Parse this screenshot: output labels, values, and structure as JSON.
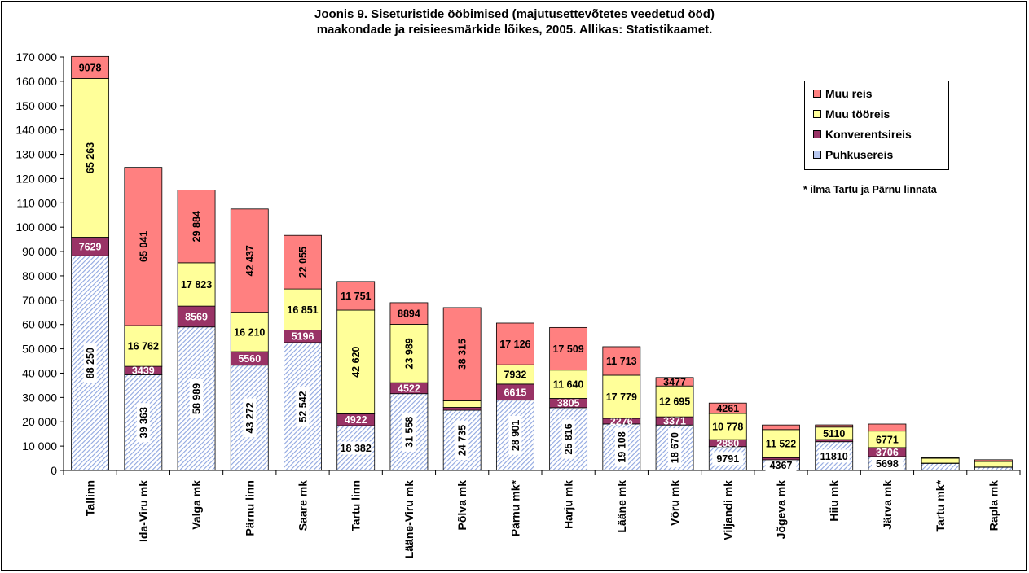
{
  "chart_data": {
    "type": "bar",
    "stacked": true,
    "title": "Joonis 9. Siseturistide ööbimised (majutusettevõtetes veedetud ööd)",
    "subtitle": "maakondade ja reisieesmärkide lõikes, 2005. Allikas: Statistikaamet.",
    "note": "* ilma Tartu ja Pärnu linnata",
    "ylim": [
      0,
      170000
    ],
    "y_ticks": [
      "0",
      "10 000",
      "20 000",
      "30 000",
      "40 000",
      "50 000",
      "60 000",
      "70 000",
      "80 000",
      "90 000",
      "100 000",
      "110 000",
      "120 000",
      "130 000",
      "140 000",
      "150 000",
      "160 000",
      "170 000"
    ],
    "grid": false,
    "legend_position": "top-right",
    "categories": [
      "Tallinn",
      "Ida-Viru mk",
      "Valga mk",
      "Pärnu linn",
      "Saare mk",
      "Tartu linn",
      "Lääne-Viru mk",
      "Põlva mk",
      "Pärnu mk*",
      "Harju mk",
      "Lääne mk",
      "Võru mk",
      "Viljandi mk",
      "Jõgeva mk",
      "Hiiu mk",
      "Järva mk",
      "Tartu mk*",
      "Rapla mk"
    ],
    "series": [
      {
        "name": "Puhkusereis",
        "color": "#b8c8f0",
        "values": [
          88250,
          39363,
          58989,
          43272,
          52542,
          18382,
          31558,
          24735,
          28901,
          25816,
          19108,
          18670,
          9791,
          4367,
          11810,
          5698,
          2900,
          1300
        ],
        "labels": [
          "88 250",
          "39 363",
          "58 989",
          "43 272",
          "52 542",
          "18 382",
          "31 558",
          "24 735",
          "28 901",
          "25 816",
          "19 108",
          "18 670",
          "9791",
          "4367",
          "11810",
          "5698",
          "",
          ""
        ]
      },
      {
        "name": "Konverentsireis",
        "color": "#993366",
        "values": [
          7629,
          3439,
          8569,
          5560,
          5196,
          4922,
          4522,
          1200,
          6615,
          3805,
          2276,
          3371,
          2880,
          900,
          900,
          3706,
          100,
          100
        ],
        "labels": [
          "7629",
          "3439",
          "8569",
          "5560",
          "5196",
          "4922",
          "4522",
          "",
          "6615",
          "3805",
          "2276",
          "3371",
          "2880",
          "",
          "",
          "3706",
          "",
          ""
        ]
      },
      {
        "name": "Muu tööreis",
        "color": "#ffff99",
        "values": [
          65263,
          16762,
          17823,
          16210,
          16851,
          42620,
          23989,
          2700,
          7932,
          11640,
          17779,
          12695,
          10778,
          11522,
          5110,
          6771,
          2000,
          2300
        ],
        "labels": [
          "65 263",
          "16 762",
          "17 823",
          "16 210",
          "16 851",
          "42 620",
          "23 989",
          "",
          "7932",
          "11 640",
          "17 779",
          "12 695",
          "10 778",
          "11 522",
          "5110",
          "6771",
          "",
          ""
        ]
      },
      {
        "name": "Muu reis",
        "color": "#ff8080",
        "values": [
          9078,
          65041,
          29884,
          42437,
          22055,
          11751,
          8894,
          38315,
          17126,
          17509,
          11713,
          3477,
          4261,
          1900,
          900,
          2900,
          200,
          700
        ],
        "labels": [
          "9078",
          "65 041",
          "29 884",
          "42 437",
          "22 055",
          "11 751",
          "8894",
          "38 315",
          "17 126",
          "17 509",
          "11 713",
          "3477",
          "4261",
          "",
          "",
          "",
          "",
          ""
        ]
      }
    ]
  }
}
